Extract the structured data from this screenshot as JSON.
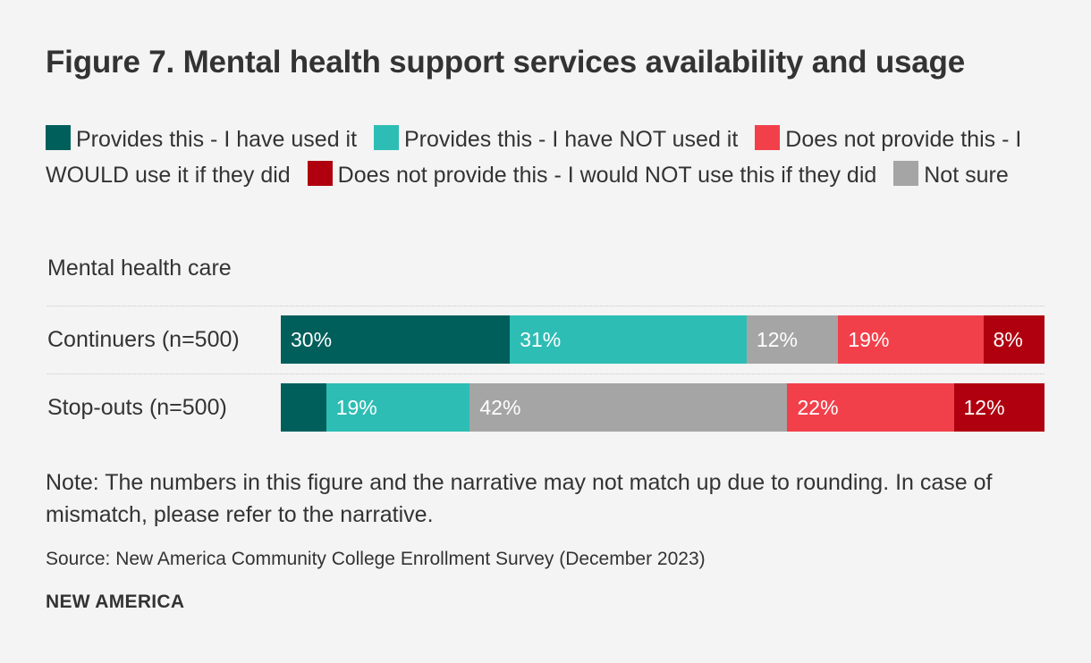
{
  "title": "Figure 7. Mental health support services availability and usage",
  "chart_data": {
    "type": "bar",
    "orientation": "horizontal",
    "stacked": true,
    "title": "Figure 7. Mental health support services availability and usage",
    "group_label": "Mental health care",
    "categories": [
      "Continuers (n=500)",
      "Stop-outs (n=500)"
    ],
    "series": [
      {
        "name": "Provides this - I have used it",
        "color": "#005f5b",
        "values": [
          30,
          6
        ],
        "labels": [
          "30%",
          ""
        ]
      },
      {
        "name": "Provides this - I have NOT used it",
        "color": "#2ebdb4",
        "values": [
          31,
          19
        ],
        "labels": [
          "31%",
          "19%"
        ]
      },
      {
        "name": "Not sure",
        "color": "#a5a5a5",
        "values": [
          12,
          42
        ],
        "labels": [
          "12%",
          "42%"
        ]
      },
      {
        "name": "Does not provide this - I WOULD use it if they did",
        "color": "#f2404b",
        "values": [
          19,
          22
        ],
        "labels": [
          "19%",
          "22%"
        ]
      },
      {
        "name": "Does not provide this - I would NOT use this if they did",
        "color": "#b0000f",
        "values": [
          8,
          12
        ],
        "labels": [
          "8%",
          "12%"
        ]
      }
    ],
    "xlim": [
      0,
      100
    ]
  },
  "legend": [
    {
      "label": "Provides this - I have used it",
      "color": "#005f5b"
    },
    {
      "label": "Provides this - I have NOT used it",
      "color": "#2ebdb4"
    },
    {
      "label": "Does not provide this - I WOULD use it if they did",
      "color": "#f2404b"
    },
    {
      "label": "Does not provide this - I would NOT use this if they did",
      "color": "#b0000f"
    },
    {
      "label": "Not sure",
      "color": "#a5a5a5"
    }
  ],
  "note": "Note: The numbers in this figure and the narrative may not match up due to rounding. In case of mismatch, please refer to the narrative.",
  "source": "Source: New America Community College Enrollment Survey (December 2023)",
  "brand": "NEW AMERICA"
}
